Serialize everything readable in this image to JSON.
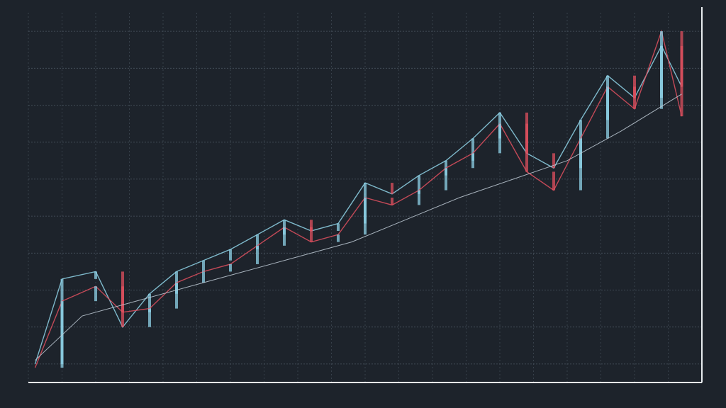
{
  "chart_data": {
    "type": "line",
    "title": "",
    "xlabel": "",
    "ylabel": "",
    "grid": true,
    "legend": "none",
    "ylim": [
      0,
      100
    ],
    "xlim": [
      0,
      100
    ],
    "colors": {
      "background": "#1d232b",
      "grid": "#4a5560",
      "up": "#8fd3e8",
      "down": "#e0505f",
      "axis": "#e8ecef"
    },
    "series": [
      {
        "color": "#8fd3e8",
        "x": [
          1,
          5,
          10,
          14,
          18,
          22,
          26,
          30,
          34,
          38,
          42,
          46,
          50,
          54,
          58,
          62,
          66,
          70,
          74,
          78,
          82,
          86,
          90,
          94,
          97
        ],
        "values": [
          5,
          28,
          30,
          15,
          24,
          30,
          33,
          36,
          40,
          44,
          41,
          43,
          54,
          51,
          56,
          60,
          66,
          73,
          62,
          58,
          71,
          83,
          77,
          91,
          80
        ]
      },
      {
        "color": "#e0505f",
        "x": [
          1,
          5,
          10,
          14,
          18,
          22,
          26,
          30,
          34,
          38,
          42,
          46,
          50,
          54,
          58,
          62,
          66,
          70,
          74,
          78,
          82,
          86,
          90,
          94,
          97
        ],
        "values": [
          4,
          22,
          26,
          19,
          20,
          27,
          30,
          32,
          37,
          42,
          38,
          40,
          50,
          48,
          52,
          58,
          62,
          70,
          57,
          52,
          66,
          80,
          74,
          95,
          72
        ]
      },
      {
        "color": "#bfcbd6",
        "x": [
          1,
          8,
          16,
          24,
          32,
          40,
          48,
          56,
          64,
          72,
          80,
          88,
          97
        ],
        "values": [
          6,
          18,
          22,
          26,
          30,
          34,
          38,
          44,
          50,
          55,
          60,
          68,
          78
        ]
      }
    ]
  }
}
